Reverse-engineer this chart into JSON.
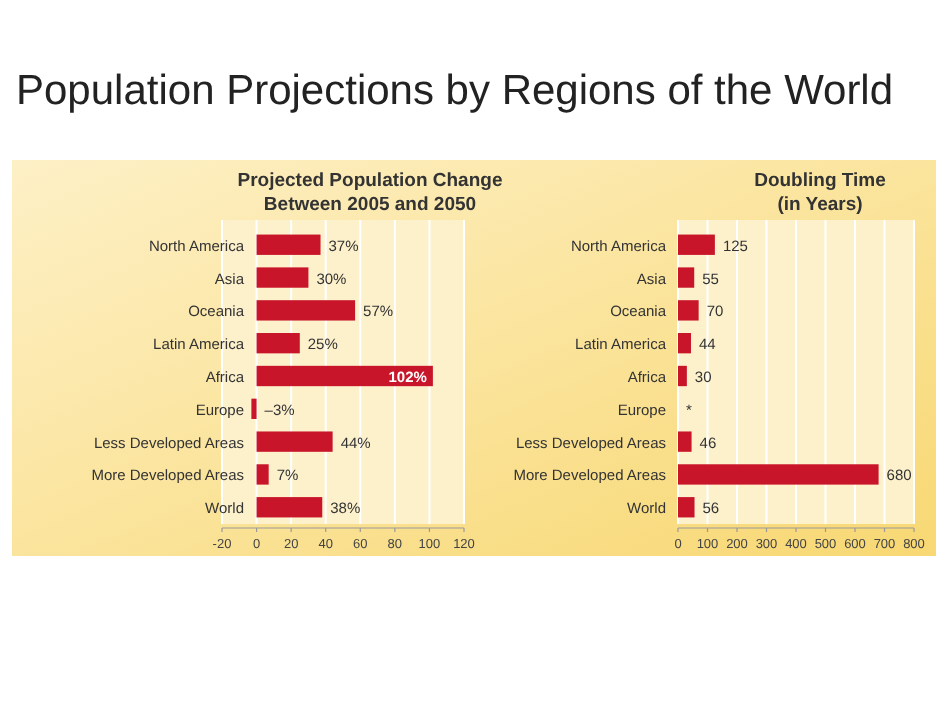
{
  "chart_data": [
    {
      "type": "bar",
      "orientation": "horizontal",
      "title": "Projected Population Change\nBetween 2005 and 2050",
      "annotations": [
        "Population Projections by Regions of the World"
      ],
      "categories": [
        "North America",
        "Asia",
        "Oceania",
        "Latin America",
        "Africa",
        "Europe",
        "Less Developed Areas",
        "More Developed Areas",
        "World"
      ],
      "values": [
        37,
        30,
        57,
        25,
        102,
        -3,
        44,
        7,
        38
      ],
      "value_labels": [
        "37%",
        "30%",
        "57%",
        "25%",
        "102%",
        "–3%",
        "44%",
        "7%",
        "38%"
      ],
      "color": "#c8152a",
      "xlim": [
        -20,
        120
      ],
      "xticks": [
        -20,
        0,
        20,
        40,
        60,
        80,
        100,
        120
      ],
      "grid": "x"
    },
    {
      "type": "bar",
      "orientation": "horizontal",
      "title": "Doubling Time\n(in Years)",
      "categories": [
        "North America",
        "Asia",
        "Oceania",
        "Latin America",
        "Africa",
        "Europe",
        "Less Developed Areas",
        "More Developed Areas",
        "World"
      ],
      "values": [
        125,
        55,
        70,
        44,
        30,
        null,
        46,
        680,
        56
      ],
      "value_labels": [
        "125",
        "55",
        "70",
        "44",
        "30",
        "*",
        "46",
        "680",
        "56"
      ],
      "color": "#c8152a",
      "xlim": [
        0,
        800
      ],
      "xticks": [
        0,
        100,
        200,
        300,
        400,
        500,
        600,
        700,
        800
      ],
      "grid": "x"
    }
  ]
}
